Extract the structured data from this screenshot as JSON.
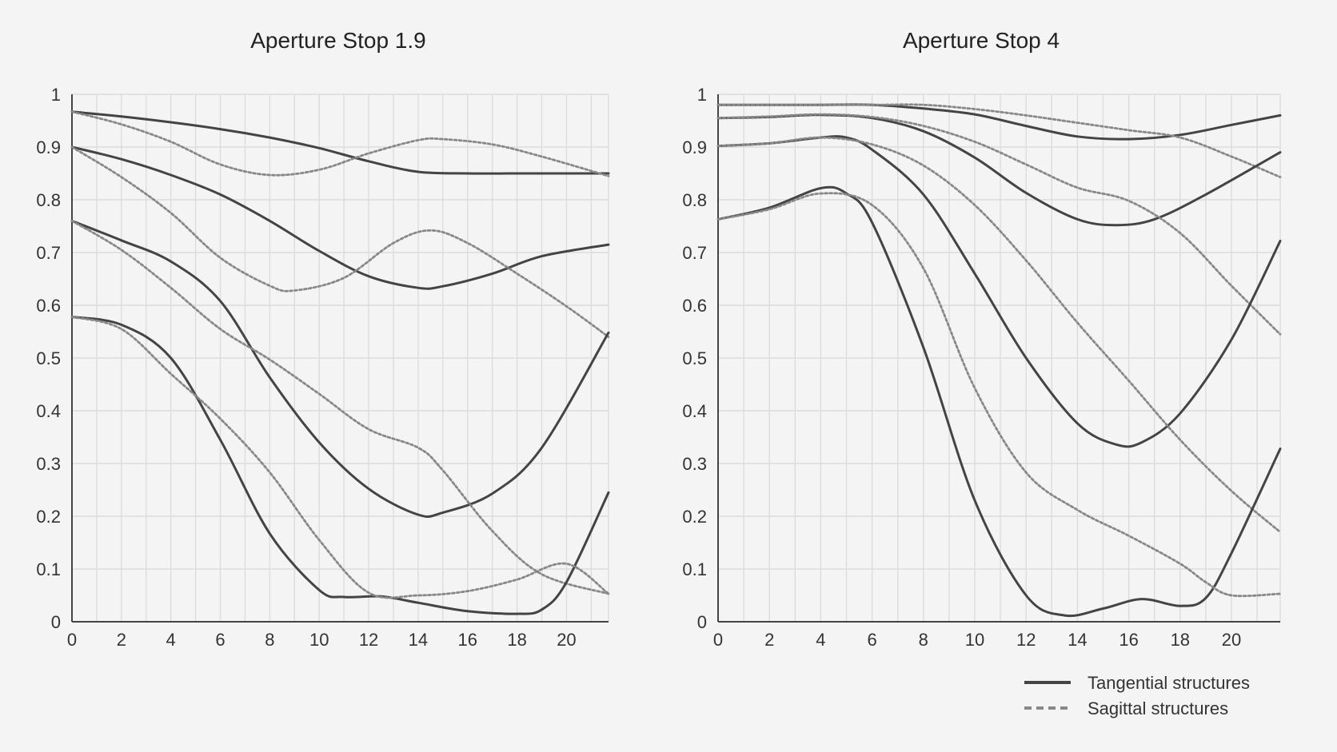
{
  "chart_data": [
    {
      "type": "line",
      "title": "Aperture Stop 1.9",
      "xlim": [
        0,
        21.7
      ],
      "ylim": [
        0,
        1
      ],
      "xticks": [
        "0",
        "2",
        "4",
        "6",
        "8",
        "10",
        "12",
        "14",
        "16",
        "18",
        "20"
      ],
      "yticks": [
        "0",
        "0.1",
        "0.2",
        "0.3",
        "0.4",
        "0.5",
        "0.6",
        "0.7",
        "0.8",
        "0.9",
        "1"
      ],
      "grid": true,
      "series": [
        {
          "style": "tangential",
          "points": [
            [
              0,
              0.967
            ],
            [
              2,
              0.958
            ],
            [
              4,
              0.947
            ],
            [
              6,
              0.934
            ],
            [
              8,
              0.918
            ],
            [
              10,
              0.898
            ],
            [
              12,
              0.873
            ],
            [
              14,
              0.853
            ],
            [
              16,
              0.85
            ],
            [
              18,
              0.85
            ],
            [
              20,
              0.85
            ],
            [
              21.7,
              0.85
            ]
          ]
        },
        {
          "style": "sagittal",
          "points": [
            [
              0,
              0.967
            ],
            [
              2,
              0.943
            ],
            [
              4,
              0.91
            ],
            [
              6,
              0.867
            ],
            [
              8,
              0.847
            ],
            [
              10,
              0.857
            ],
            [
              12,
              0.888
            ],
            [
              14,
              0.913
            ],
            [
              15,
              0.915
            ],
            [
              17,
              0.905
            ],
            [
              19,
              0.882
            ],
            [
              21.7,
              0.845
            ]
          ]
        },
        {
          "style": "tangential",
          "points": [
            [
              0,
              0.9
            ],
            [
              2,
              0.877
            ],
            [
              4,
              0.847
            ],
            [
              6,
              0.81
            ],
            [
              8,
              0.76
            ],
            [
              10,
              0.703
            ],
            [
              12,
              0.655
            ],
            [
              14,
              0.633
            ],
            [
              15,
              0.636
            ],
            [
              17,
              0.66
            ],
            [
              19,
              0.693
            ],
            [
              21.7,
              0.715
            ]
          ]
        },
        {
          "style": "sagittal",
          "points": [
            [
              0,
              0.9
            ],
            [
              2,
              0.843
            ],
            [
              4,
              0.775
            ],
            [
              6,
              0.69
            ],
            [
              8,
              0.637
            ],
            [
              9,
              0.628
            ],
            [
              11,
              0.652
            ],
            [
              13,
              0.718
            ],
            [
              14.5,
              0.742
            ],
            [
              16,
              0.718
            ],
            [
              18,
              0.66
            ],
            [
              20,
              0.598
            ],
            [
              21.7,
              0.54
            ]
          ]
        },
        {
          "style": "tangential",
          "points": [
            [
              0,
              0.76
            ],
            [
              2,
              0.723
            ],
            [
              4,
              0.683
            ],
            [
              6,
              0.608
            ],
            [
              8,
              0.463
            ],
            [
              10,
              0.34
            ],
            [
              12,
              0.252
            ],
            [
              14,
              0.203
            ],
            [
              15,
              0.207
            ],
            [
              17,
              0.243
            ],
            [
              19,
              0.33
            ],
            [
              21.7,
              0.548
            ]
          ]
        },
        {
          "style": "sagittal",
          "points": [
            [
              0,
              0.76
            ],
            [
              2,
              0.705
            ],
            [
              4,
              0.633
            ],
            [
              6,
              0.555
            ],
            [
              8,
              0.497
            ],
            [
              10,
              0.432
            ],
            [
              12,
              0.365
            ],
            [
              14,
              0.33
            ],
            [
              15,
              0.287
            ],
            [
              17,
              0.172
            ],
            [
              19,
              0.09
            ],
            [
              21.7,
              0.053
            ]
          ]
        },
        {
          "style": "tangential",
          "points": [
            [
              0,
              0.578
            ],
            [
              2,
              0.563
            ],
            [
              4,
              0.5
            ],
            [
              6,
              0.345
            ],
            [
              8,
              0.167
            ],
            [
              10,
              0.06
            ],
            [
              11,
              0.047
            ],
            [
              12.5,
              0.048
            ],
            [
              14,
              0.036
            ],
            [
              16,
              0.02
            ],
            [
              18,
              0.015
            ],
            [
              19,
              0.023
            ],
            [
              20,
              0.075
            ],
            [
              21.7,
              0.245
            ]
          ]
        },
        {
          "style": "sagittal",
          "points": [
            [
              0,
              0.578
            ],
            [
              2,
              0.555
            ],
            [
              4,
              0.47
            ],
            [
              6,
              0.385
            ],
            [
              8,
              0.283
            ],
            [
              10,
              0.155
            ],
            [
              12,
              0.055
            ],
            [
              14,
              0.05
            ],
            [
              16,
              0.058
            ],
            [
              18,
              0.08
            ],
            [
              20,
              0.11
            ],
            [
              21.7,
              0.053
            ]
          ]
        }
      ]
    },
    {
      "type": "line",
      "title": "Aperture Stop 4",
      "xlim": [
        0,
        21.9
      ],
      "ylim": [
        0,
        1
      ],
      "xticks": [
        "0",
        "2",
        "4",
        "6",
        "8",
        "10",
        "12",
        "14",
        "16",
        "18",
        "20"
      ],
      "yticks": [
        "0",
        "0.1",
        "0.2",
        "0.3",
        "0.4",
        "0.5",
        "0.6",
        "0.7",
        "0.8",
        "0.9",
        "1"
      ],
      "grid": true,
      "series": [
        {
          "style": "tangential",
          "points": [
            [
              0,
              0.98
            ],
            [
              2,
              0.98
            ],
            [
              4,
              0.98
            ],
            [
              6,
              0.98
            ],
            [
              8,
              0.973
            ],
            [
              10,
              0.962
            ],
            [
              12,
              0.94
            ],
            [
              14,
              0.92
            ],
            [
              16,
              0.915
            ],
            [
              18,
              0.923
            ],
            [
              20,
              0.942
            ],
            [
              21.9,
              0.96
            ]
          ]
        },
        {
          "style": "sagittal",
          "points": [
            [
              0,
              0.98
            ],
            [
              2,
              0.98
            ],
            [
              4,
              0.98
            ],
            [
              6,
              0.98
            ],
            [
              8,
              0.98
            ],
            [
              10,
              0.972
            ],
            [
              12,
              0.96
            ],
            [
              14,
              0.946
            ],
            [
              16,
              0.932
            ],
            [
              18,
              0.918
            ],
            [
              20,
              0.882
            ],
            [
              21.9,
              0.843
            ]
          ]
        },
        {
          "style": "tangential",
          "points": [
            [
              0,
              0.955
            ],
            [
              2,
              0.957
            ],
            [
              4,
              0.961
            ],
            [
              6,
              0.955
            ],
            [
              8,
              0.93
            ],
            [
              10,
              0.88
            ],
            [
              12,
              0.813
            ],
            [
              14,
              0.763
            ],
            [
              15.5,
              0.752
            ],
            [
              17,
              0.763
            ],
            [
              19,
              0.81
            ],
            [
              21.9,
              0.89
            ]
          ]
        },
        {
          "style": "sagittal",
          "points": [
            [
              0,
              0.955
            ],
            [
              2,
              0.958
            ],
            [
              4,
              0.962
            ],
            [
              6,
              0.957
            ],
            [
              8,
              0.94
            ],
            [
              10,
              0.91
            ],
            [
              12,
              0.867
            ],
            [
              14,
              0.823
            ],
            [
              16,
              0.798
            ],
            [
              18,
              0.737
            ],
            [
              20,
              0.637
            ],
            [
              21.9,
              0.545
            ]
          ]
        },
        {
          "style": "tangential",
          "points": [
            [
              0,
              0.902
            ],
            [
              2,
              0.907
            ],
            [
              4,
              0.918
            ],
            [
              5,
              0.918
            ],
            [
              6,
              0.895
            ],
            [
              8,
              0.81
            ],
            [
              10,
              0.66
            ],
            [
              12,
              0.5
            ],
            [
              14,
              0.376
            ],
            [
              15.5,
              0.336
            ],
            [
              16.5,
              0.34
            ],
            [
              18,
              0.395
            ],
            [
              20,
              0.535
            ],
            [
              21.9,
              0.722
            ]
          ]
        },
        {
          "style": "sagittal",
          "points": [
            [
              0,
              0.902
            ],
            [
              2,
              0.907
            ],
            [
              4,
              0.918
            ],
            [
              6,
              0.905
            ],
            [
              8,
              0.865
            ],
            [
              10,
              0.79
            ],
            [
              12,
              0.685
            ],
            [
              14,
              0.567
            ],
            [
              16,
              0.457
            ],
            [
              18,
              0.345
            ],
            [
              20,
              0.248
            ],
            [
              21.9,
              0.17
            ]
          ]
        },
        {
          "style": "tangential",
          "points": [
            [
              0,
              0.763
            ],
            [
              2,
              0.785
            ],
            [
              4,
              0.822
            ],
            [
              5,
              0.812
            ],
            [
              6,
              0.757
            ],
            [
              8,
              0.52
            ],
            [
              10,
              0.23
            ],
            [
              12,
              0.05
            ],
            [
              13.5,
              0.012
            ],
            [
              15,
              0.025
            ],
            [
              16.5,
              0.043
            ],
            [
              18,
              0.03
            ],
            [
              19,
              0.045
            ],
            [
              20,
              0.13
            ],
            [
              21.9,
              0.328
            ]
          ]
        },
        {
          "style": "sagittal",
          "points": [
            [
              0,
              0.763
            ],
            [
              2,
              0.782
            ],
            [
              4,
              0.812
            ],
            [
              6,
              0.79
            ],
            [
              8,
              0.67
            ],
            [
              10,
              0.443
            ],
            [
              12,
              0.283
            ],
            [
              14,
              0.212
            ],
            [
              16,
              0.163
            ],
            [
              18,
              0.11
            ],
            [
              19,
              0.075
            ],
            [
              20,
              0.05
            ],
            [
              21.9,
              0.053
            ]
          ]
        }
      ]
    }
  ],
  "legend": {
    "placement": "bottom-right",
    "items": [
      {
        "label": "Tangential structures",
        "style": "tangential"
      },
      {
        "label": "Sagittal structures",
        "style": "sagittal"
      }
    ]
  },
  "colors": {
    "background": "#f4f4f4",
    "tangential": "#444444",
    "sagittal": "#888888",
    "grid": "#dcdcdc",
    "axis": "#444444",
    "text": "#222222"
  }
}
